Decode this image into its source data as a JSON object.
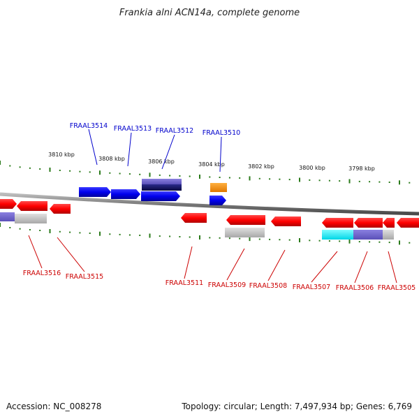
{
  "title": "Frankia alni ACN14a, complete genome",
  "footer": {
    "accession": "Accession: NC_008278",
    "summary": "Topology: circular; Length: 7,497,934 bp; Genes: 6,769"
  },
  "colors": {
    "forward_label": "#0000cc",
    "reverse_label": "#cc0000",
    "tick": "#2a7a1a",
    "backbone": "#8a8a8a"
  },
  "scale_labels": [
    "3810 kbp",
    "3808 kbp",
    "3806 kbp",
    "3804 kbp",
    "3802 kbp",
    "3800 kbp",
    "3798 kbp"
  ],
  "forward_genes": [
    "FRAAL3514",
    "FRAAL3513",
    "FRAAL3512",
    "FRAAL3510"
  ],
  "reverse_genes": [
    "FRAAL3516",
    "FRAAL3515",
    "FRAAL3511",
    "FRAAL3509",
    "FRAAL3508",
    "FRAAL3507",
    "FRAAL3506",
    "FRAAL3505"
  ]
}
